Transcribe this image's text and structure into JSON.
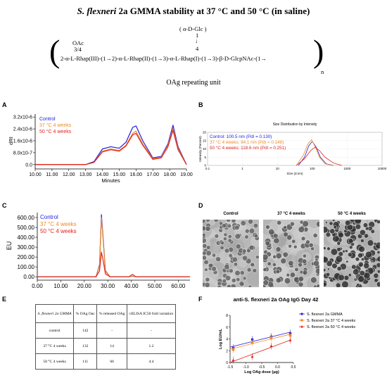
{
  "title": {
    "species": "S. flexneri",
    "rest": "2a GMMA stability at 37 °C and 50 °C (in saline)"
  },
  "structure": {
    "branch_top": "( α-D-Glc )",
    "branch_num1": "1",
    "branch_arrow": "↓",
    "branch_num4": "4",
    "oac": "OAc",
    "oac_pos": "3/4",
    "chain": "2-α-L-Rhap(III)-(1→2)-α-L-Rhap(II)-(1→3)-α-L-Rhap(I)-(1→3)-β-D-GlcpNAc-(1→",
    "n": "n",
    "caption": "OAg repeating unit"
  },
  "colors": {
    "control": "#1f1fe0",
    "w37": "#f08a24",
    "w50": "#e0231f"
  },
  "panelA": {
    "label": "A",
    "ylabel": "dRI",
    "xlabel": "Minutes",
    "yticks": [
      "3.2x10^-6",
      "2.4x10^-6",
      "1.6x10^-6",
      "8.0x10^-7",
      "0.0"
    ],
    "xticks": [
      "10.00",
      "11.00",
      "12.00",
      "13.00",
      "14.00",
      "15.00",
      "16.00",
      "17.00",
      "18.00",
      "19.00"
    ],
    "legend": [
      "Control",
      "37 °C 4 weeks",
      "50 °C 4 weeks"
    ]
  },
  "panelB": {
    "label": "B",
    "title": "Size Distribution by Intensity",
    "ylabel": "Intensity (Percent)",
    "xlabel": "Size (d.nm)",
    "yticks": [
      "20",
      "15",
      "10",
      "5",
      "0"
    ],
    "xticks": [
      "0.1",
      "1",
      "10",
      "100",
      "1000",
      "10000"
    ],
    "legend": [
      "Control: 100.5 nm (PdI = 0.130)",
      "37 °C 4 weeks: 94.1 nm (PdI = 0.148)",
      "50 °C 4 weeks: 118.6 nm (PdI = 0.251)"
    ]
  },
  "panelC": {
    "label": "C",
    "ylabel": "EU",
    "xlabel": "Minutes",
    "yticks": [
      "600.00",
      "500.00",
      "400.00",
      "300.00",
      "200.00",
      "100.00",
      "0.00"
    ],
    "xticks": [
      "0.00",
      "10.00",
      "20.00",
      "30.00",
      "40.00",
      "50.00",
      "60.00"
    ],
    "legend": [
      "Control",
      "37 °C 4 weeks",
      "50 °C 4 weeks"
    ]
  },
  "panelD": {
    "label": "D",
    "images": [
      "Control",
      "37 °C 4 weeks",
      "50 °C 4 weeks"
    ]
  },
  "panelE": {
    "label": "E",
    "headers": [
      "S. flexneri 2a GMMA",
      "% OAg Oac",
      "% released OAg",
      "cELISA IC50 fold variation"
    ],
    "rows": [
      [
        "control",
        "142",
        "-",
        "-"
      ],
      [
        "37 °C 4 weeks",
        "132",
        "14",
        "1.2"
      ],
      [
        "50 °C 4 weeks",
        "111",
        "66",
        "4.4"
      ]
    ]
  },
  "panelF": {
    "label": "F",
    "title": "anti-S. flexneri 2a OAg IgG Day 42",
    "ylabel": "Log EU/mL",
    "xlabel": "Log OAg dose (μg)",
    "yticks": [
      "8",
      "6",
      "4",
      "2",
      "0"
    ],
    "xticks": [
      "-1.5",
      "-1.0",
      "-0.5",
      "0.0",
      "0.5"
    ],
    "legend": [
      "S. flexneri 2a GMMA",
      "S. flexneri 2a 37 °C 4 weeks",
      "S. flexneri 2a 50 °C 4 weeks"
    ]
  },
  "chart_data": [
    {
      "type": "line",
      "panel": "A",
      "ylabel": "dRI",
      "xlabel": "Minutes",
      "xlim": [
        10,
        19
      ],
      "ylim": [
        -2e-07,
        3.4e-06
      ],
      "series": [
        {
          "name": "Control",
          "x": [
            10,
            13,
            13.5,
            14,
            14.5,
            15,
            15.4,
            15.8,
            16,
            16.4,
            17,
            17.5,
            17.9,
            18.2,
            18.5,
            19
          ],
          "y": [
            0,
            0,
            2e-07,
            1.05e-06,
            1.2e-06,
            1.1e-06,
            1.5e-06,
            2.5e-06,
            2.6e-06,
            1.6e-06,
            4.5e-07,
            5.5e-07,
            1.4e-06,
            2.65e-06,
            1.2e-06,
            0
          ]
        },
        {
          "name": "37 °C 4 weeks",
          "x": [
            10,
            13,
            13.5,
            14,
            14.5,
            15,
            15.4,
            15.8,
            16,
            16.4,
            17,
            17.5,
            17.9,
            18.2,
            18.5,
            19
          ],
          "y": [
            0,
            0,
            1.5e-07,
            9e-07,
            1.05e-06,
            9.5e-07,
            1.3e-06,
            2.1e-06,
            2.25e-06,
            1.4e-06,
            4e-07,
            5e-07,
            1.3e-06,
            2.45e-06,
            1.1e-06,
            0
          ]
        },
        {
          "name": "50 °C 4 weeks",
          "x": [
            10,
            13,
            13.5,
            14,
            14.5,
            15,
            15.4,
            15.8,
            16,
            16.4,
            17,
            17.5,
            17.9,
            18.2,
            18.5,
            19
          ],
          "y": [
            0,
            0,
            1.5e-07,
            8.5e-07,
            1e-06,
            9e-07,
            1.25e-06,
            2e-06,
            2.1e-06,
            1.3e-06,
            3.5e-07,
            4.5e-07,
            1.2e-06,
            2.3e-06,
            1e-06,
            0
          ]
        }
      ]
    },
    {
      "type": "line",
      "panel": "B",
      "x_scale": "log",
      "xlim": [
        0.1,
        10000
      ],
      "ylim": [
        0,
        20
      ],
      "series": [
        {
          "name": "Control",
          "x": [
            40,
            60,
            80,
            100,
            130,
            170,
            250,
            400
          ],
          "y": [
            0,
            5,
            12,
            14.5,
            11,
            5,
            1,
            0
          ]
        },
        {
          "name": "37 °C 4 weeks",
          "x": [
            35,
            55,
            75,
            95,
            120,
            160,
            230,
            380
          ],
          "y": [
            0,
            6,
            13,
            15.5,
            11.5,
            5,
            1,
            0
          ]
        },
        {
          "name": "50 °C 4 weeks",
          "x": [
            35,
            60,
            90,
            120,
            160,
            230,
            400,
            700
          ],
          "y": [
            0,
            4,
            9,
            11,
            9,
            5,
            1.5,
            0
          ]
        }
      ]
    },
    {
      "type": "line",
      "panel": "C",
      "ylabel": "EU",
      "xlabel": "Minutes",
      "xlim": [
        0,
        65
      ],
      "ylim": [
        -20,
        650
      ],
      "series": [
        {
          "name": "Control",
          "x": [
            0,
            25,
            26.5,
            27.3,
            28,
            29,
            31,
            39,
            40.5,
            42,
            65
          ],
          "y": [
            0,
            0,
            120,
            630,
            400,
            60,
            0,
            0,
            6,
            0,
            0
          ]
        },
        {
          "name": "37 °C 4 weeks",
          "x": [
            0,
            25,
            26.5,
            27.3,
            28,
            29,
            31,
            39,
            40.5,
            42,
            65
          ],
          "y": [
            0,
            0,
            110,
            600,
            380,
            55,
            0,
            0,
            8,
            0,
            0
          ]
        },
        {
          "name": "50 °C 4 weeks",
          "x": [
            0,
            25,
            26.5,
            27.3,
            28,
            29,
            31,
            39,
            40.5,
            42,
            65
          ],
          "y": [
            0,
            0,
            60,
            250,
            170,
            30,
            0,
            0,
            25,
            0,
            0
          ]
        }
      ]
    },
    {
      "type": "scatter",
      "panel": "F",
      "xlim": [
        -1.5,
        0.5
      ],
      "ylim": [
        0,
        8
      ],
      "series": [
        {
          "name": "S. flexneri 2a GMMA",
          "x": [
            -1.4,
            -0.8,
            -0.2,
            0.4
          ],
          "y": [
            2.5,
            3.9,
            4.4,
            5.0
          ]
        },
        {
          "name": "S. flexneri 2a 37 °C 4 weeks",
          "x": [
            -1.4,
            -0.8,
            -0.2,
            0.4
          ],
          "y": [
            2.2,
            3.4,
            4.2,
            4.6
          ]
        },
        {
          "name": "S. flexneri 2a 50 °C 4 weeks",
          "x": [
            -1.4,
            -0.8,
            -0.2,
            0.4
          ],
          "y": [
            0.4,
            1.0,
            2.8,
            3.8
          ]
        }
      ]
    }
  ]
}
